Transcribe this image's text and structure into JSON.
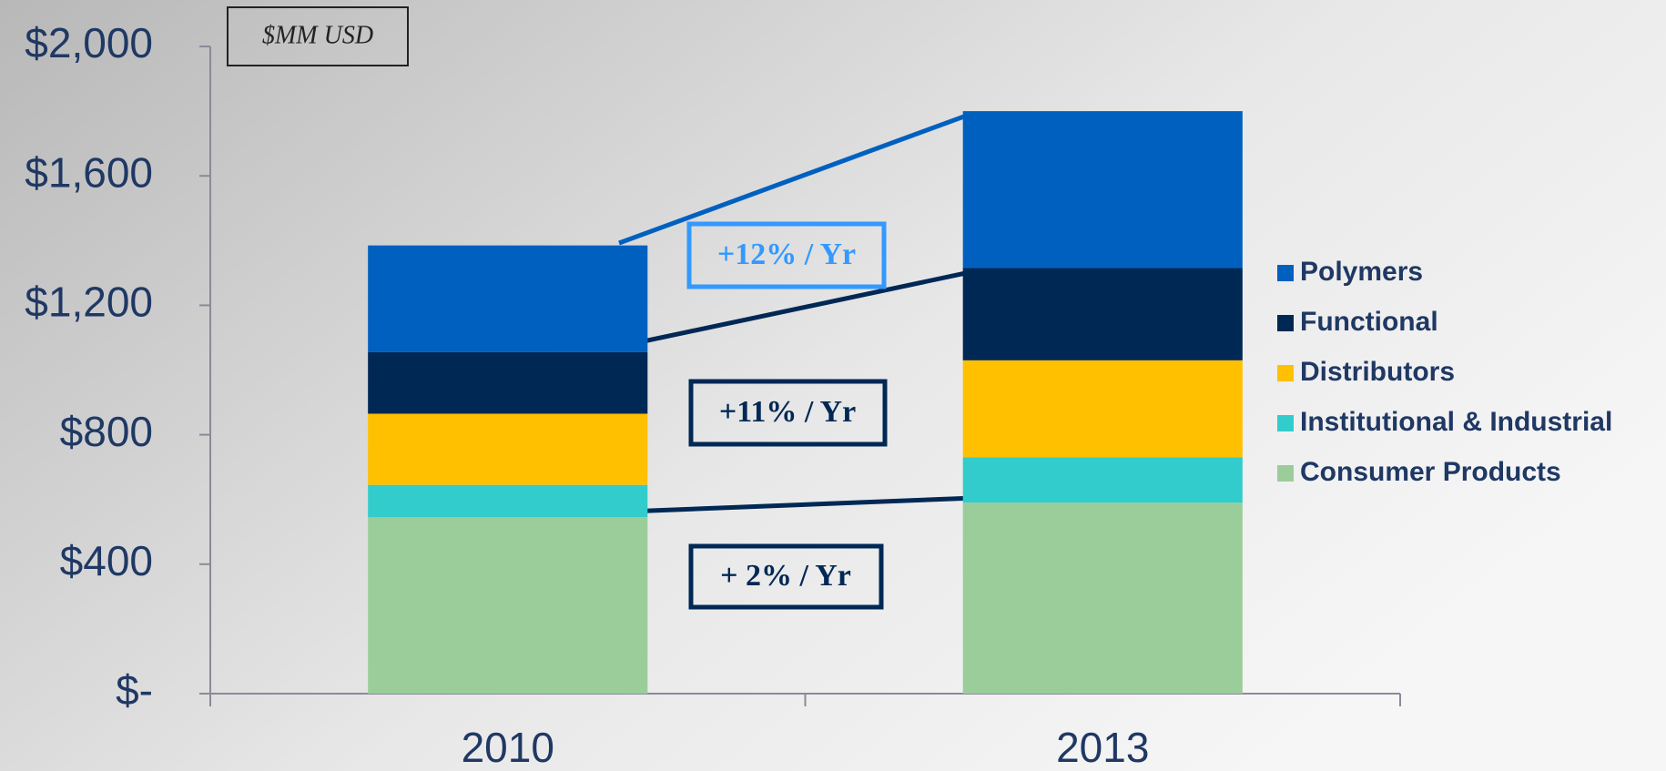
{
  "chart_data": {
    "type": "stacked_bar",
    "categories": [
      "2010",
      "2013"
    ],
    "series": [
      {
        "name": "Consumer Products",
        "color": "#9bcd9a",
        "values": [
          545,
          590
        ]
      },
      {
        "name": "Institutional & Industrial",
        "color": "#33cccc",
        "values": [
          100,
          140
        ]
      },
      {
        "name": "Distributors",
        "color": "#ffc000",
        "values": [
          220,
          300
        ]
      },
      {
        "name": "Functional",
        "color": "#002855",
        "values": [
          190,
          285
        ]
      },
      {
        "name": "Polymers",
        "color": "#0060c0",
        "values": [
          330,
          485
        ]
      }
    ],
    "ylim": [
      0,
      2000
    ],
    "yticks": [
      {
        "value": 0,
        "label": "$-"
      },
      {
        "value": 400,
        "label": "$400"
      },
      {
        "value": 800,
        "label": "$800"
      },
      {
        "value": 1200,
        "label": "$1,200"
      },
      {
        "value": 1600,
        "label": "$1,600"
      },
      {
        "value": 2000,
        "label": "$2,000"
      }
    ],
    "annotations": [
      "$MM USD",
      "+12% / Yr",
      "+11% / Yr",
      "+ 2% / Yr"
    ]
  }
}
